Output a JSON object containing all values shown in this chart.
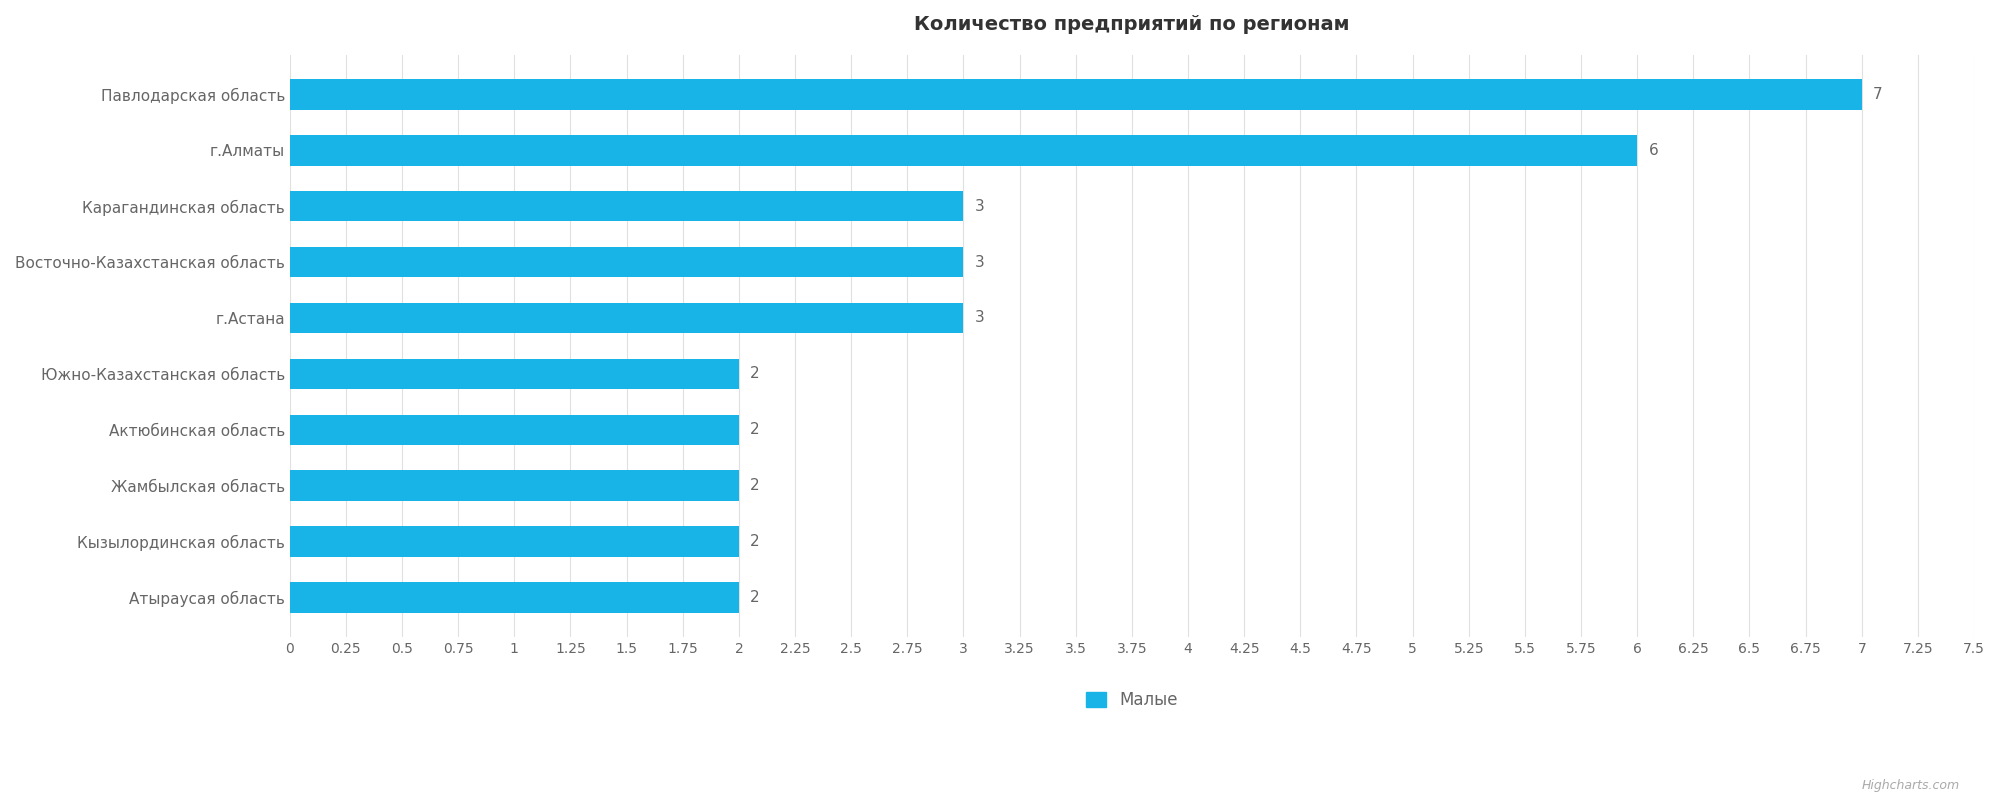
{
  "title": "Количество предприятий по регионам",
  "categories": [
    "Атыраусая область",
    "Кызылординская область",
    "Жамбылская область",
    "Актюбинская область",
    "Южно-Казахстанская область",
    "г.Астана",
    "Восточно-Казахстанская область",
    "Карагандинская область",
    "г.Алматы",
    "Павлодарская область"
  ],
  "values": [
    2,
    2,
    2,
    2,
    2,
    3,
    3,
    3,
    6,
    7
  ],
  "bar_color": "#18b4e8",
  "background_color": "#ffffff",
  "plot_bg_color": "#ffffff",
  "grid_color": "#e0e0e0",
  "text_color": "#666666",
  "title_color": "#333333",
  "legend_label": "Малые",
  "xlim": [
    0,
    7.5
  ],
  "xticks": [
    0,
    0.25,
    0.5,
    0.75,
    1,
    1.25,
    1.5,
    1.75,
    2,
    2.25,
    2.5,
    2.75,
    3,
    3.25,
    3.5,
    3.75,
    4,
    4.25,
    4.5,
    4.75,
    5,
    5.25,
    5.5,
    5.75,
    6,
    6.25,
    6.5,
    6.75,
    7,
    7.25,
    7.5
  ],
  "bar_height": 0.55,
  "figsize": [
    20,
    8
  ],
  "dpi": 100,
  "watermark": "Highcharts.com",
  "label_fontsize": 11,
  "title_fontsize": 14,
  "tick_fontsize": 10,
  "ytick_fontsize": 11
}
